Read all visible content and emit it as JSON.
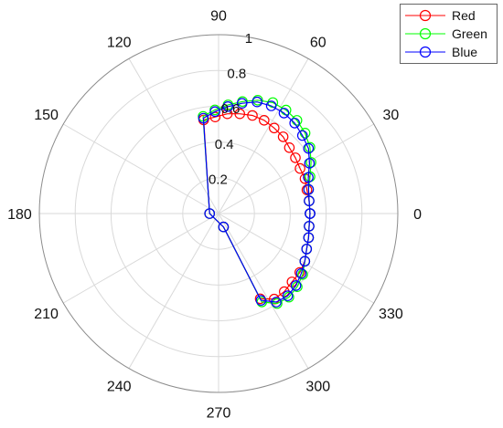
{
  "chart_data": {
    "type": "polar-line",
    "theta_unit": "degrees",
    "rlim": [
      0,
      1
    ],
    "r_ticks": [
      "0.2",
      "0.4",
      "0.6",
      "0.8",
      "1"
    ],
    "theta_ticks": [
      "0",
      "30",
      "60",
      "90",
      "120",
      "150",
      "180",
      "210",
      "240",
      "270",
      "300",
      "330"
    ],
    "grid": true,
    "legend_position": "top-right",
    "theta": [
      0,
      8,
      15,
      22,
      29,
      36,
      43,
      50,
      57,
      64,
      71,
      78,
      85,
      92,
      99,
      180,
      290,
      296,
      303,
      310,
      317,
      324,
      331,
      338,
      345,
      352,
      360
    ],
    "series": [
      {
        "name": "Red",
        "color": "#ff0000",
        "r": [
          0.51,
          0.51,
          0.51,
          0.52,
          0.52,
          0.53,
          0.54,
          0.56,
          0.57,
          0.58,
          0.58,
          0.57,
          0.56,
          0.54,
          0.53,
          0.05,
          0.08,
          0.53,
          0.57,
          0.57,
          0.56,
          0.56,
          0.55,
          0.53,
          0.52,
          0.51,
          0.51
        ]
      },
      {
        "name": "Green",
        "color": "#00ff00",
        "r": [
          0.51,
          0.51,
          0.52,
          0.55,
          0.59,
          0.63,
          0.66,
          0.68,
          0.69,
          0.69,
          0.67,
          0.64,
          0.61,
          0.58,
          0.55,
          0.05,
          0.08,
          0.55,
          0.6,
          0.61,
          0.6,
          0.58,
          0.55,
          0.53,
          0.52,
          0.51,
          0.51
        ]
      },
      {
        "name": "Blue",
        "color": "#0000ff",
        "r": [
          0.51,
          0.51,
          0.52,
          0.54,
          0.58,
          0.62,
          0.64,
          0.66,
          0.67,
          0.67,
          0.66,
          0.63,
          0.6,
          0.57,
          0.54,
          0.05,
          0.08,
          0.54,
          0.59,
          0.6,
          0.59,
          0.57,
          0.55,
          0.53,
          0.52,
          0.51,
          0.51
        ]
      }
    ]
  }
}
